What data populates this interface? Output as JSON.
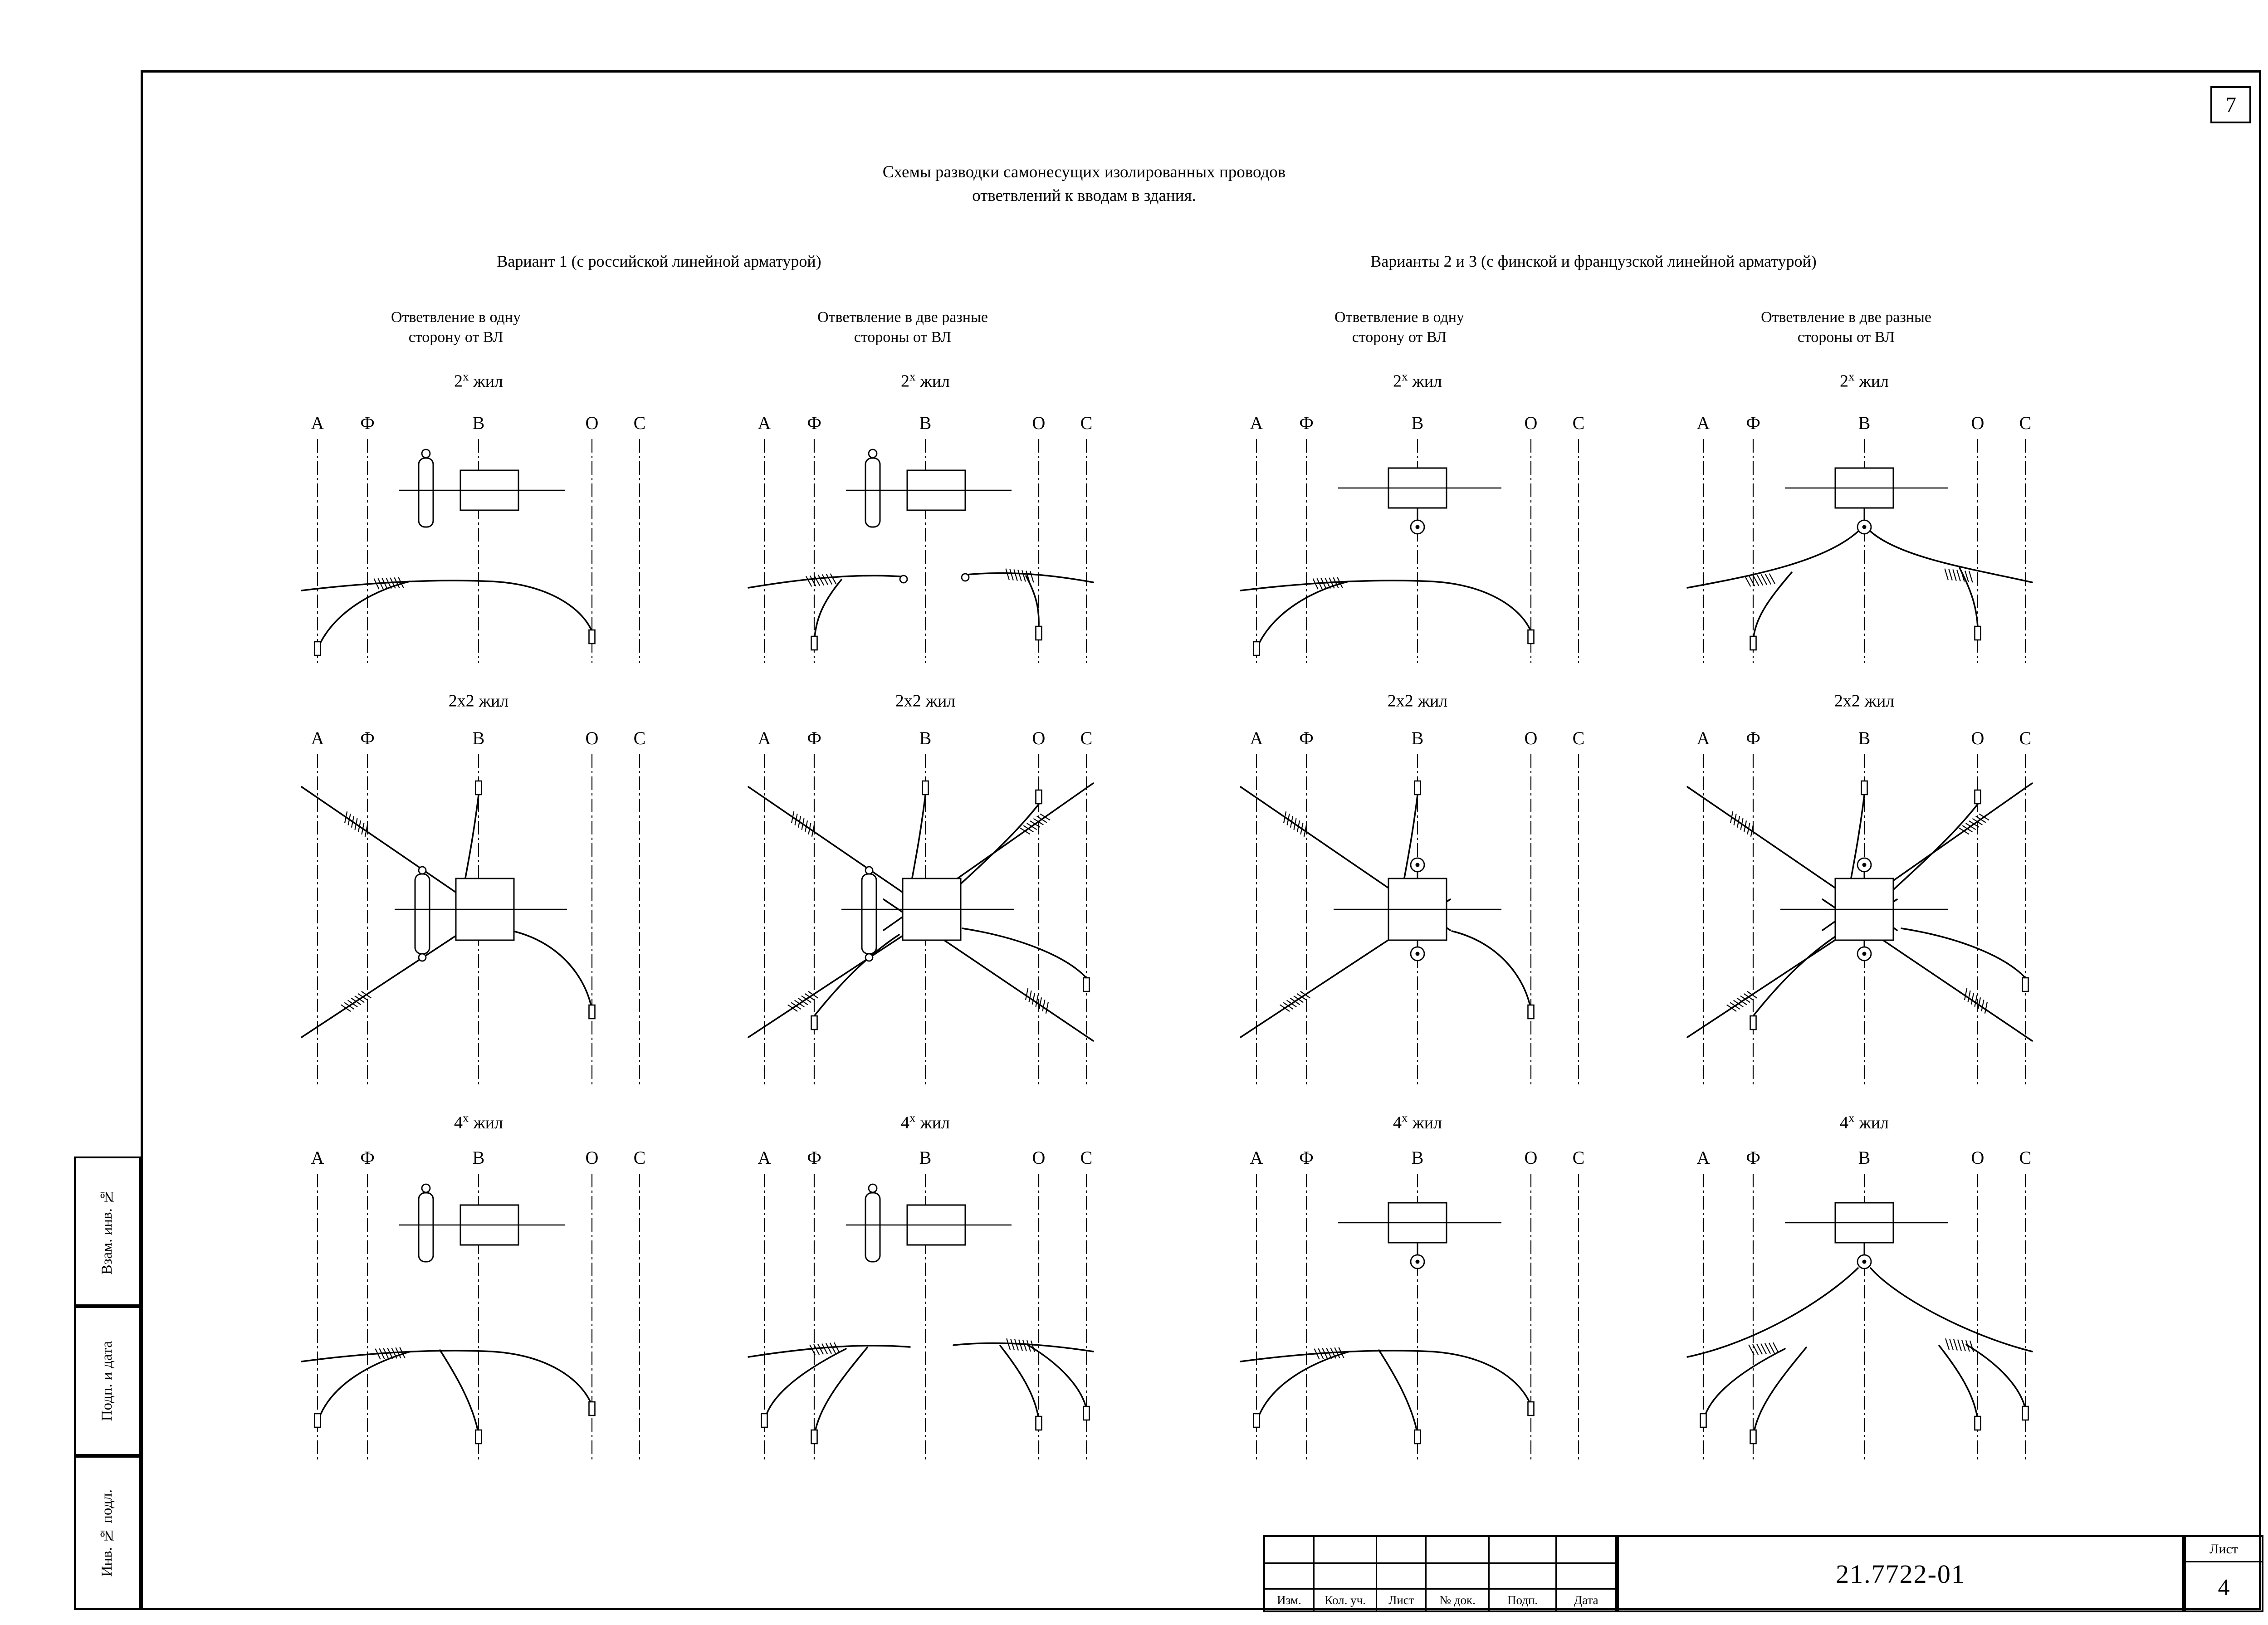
{
  "page": {
    "sheet_number_top": "7",
    "title_line1": "Схемы разводки самонесущих изолированных проводов",
    "title_line2": "ответвлений к вводам в здания.",
    "variant1_header": "Вариант 1 (с российской линейной арматурой)",
    "variant23_header": "Варианты 2 и 3 (с финской и французской линейной арматурой)"
  },
  "columns": [
    {
      "subtitle_line1": "Ответвление в одну",
      "subtitle_line2": "сторону от ВЛ"
    },
    {
      "subtitle_line1": "Ответвление в две разные",
      "subtitle_line2": "стороны от ВЛ"
    },
    {
      "subtitle_line1": "Ответвление в одну",
      "subtitle_line2": "сторону от ВЛ"
    },
    {
      "subtitle_line1": "Ответвление в две разные",
      "subtitle_line2": "стороны от ВЛ"
    }
  ],
  "rows": [
    {
      "base": "2",
      "sup": "х",
      "suffix": "жил"
    },
    {
      "base": "2x2",
      "sup": "",
      "suffix": "жил"
    },
    {
      "base": "4",
      "sup": "х",
      "suffix": "жил"
    }
  ],
  "conductor_labels": [
    "А",
    "Ф",
    "В",
    "О",
    "С"
  ],
  "title_block": {
    "doc_number": "21.7722-01",
    "sheet_label": "Лист",
    "sheet_value": "4",
    "columns": [
      "Изм.",
      "Кол. уч.",
      "Лист",
      "№ док.",
      "Подп.",
      "Дата"
    ]
  },
  "side_labels": [
    "Взам. инв. №",
    "Подп. и дата",
    "Инв. № подл."
  ]
}
